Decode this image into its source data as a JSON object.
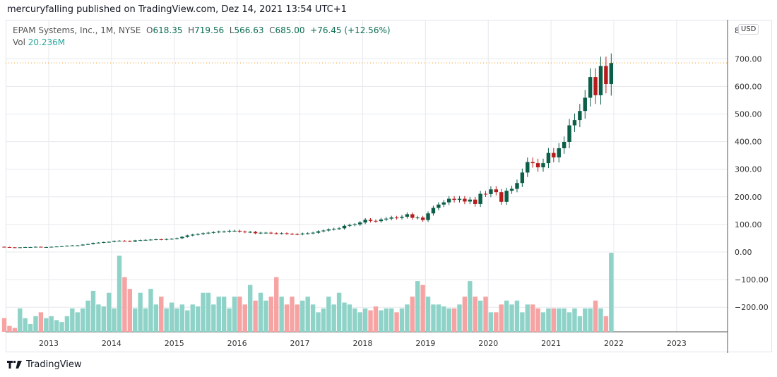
{
  "header": {
    "published": "mercuryfalling published on TradingView.com, Dez 14, 2021 13:54 UTC+1"
  },
  "legend": {
    "symbol": "EPAM Systems, Inc., 1M, NYSE",
    "open_label": "O",
    "open": "618.35",
    "high_label": "H",
    "high": "719.56",
    "low_label": "L",
    "low": "566.63",
    "close_label": "C",
    "close": "685.00",
    "change": "+76.45 (+12.56%)",
    "vol_label": "Vol",
    "vol": "20.236M"
  },
  "currency": "USD",
  "axis_top_partial": "8",
  "footer": {
    "brand": "TradingView"
  },
  "colors": {
    "up": "#0b5e47",
    "down": "#b71c1c",
    "vol_up": "#8fd3c8",
    "vol_down": "#f6a3a3",
    "last_price_line": "#f7931a",
    "grid": "#e6e8ee"
  },
  "chart_data": {
    "type": "candlestick",
    "interval": "1M",
    "start_month": "2012-04",
    "ylim": [
      -300,
      800
    ],
    "yticks": [
      "700.00",
      "600.00",
      "500.00",
      "400.00",
      "300.00",
      "200.00",
      "100.00",
      "0.00",
      "−100.00",
      "−200.00"
    ],
    "ytick_values": [
      700,
      600,
      500,
      400,
      300,
      200,
      100,
      0,
      -100,
      -200
    ],
    "xticks": [
      "2013",
      "2014",
      "2015",
      "2016",
      "2017",
      "2018",
      "2019",
      "2020",
      "2021",
      "2022",
      "2023"
    ],
    "last_price": 685.0,
    "close": [
      18,
      17,
      16,
      17,
      18,
      18,
      19,
      18,
      18,
      19,
      20,
      21,
      23,
      24,
      24,
      27,
      29,
      33,
      34,
      36,
      37,
      40,
      41,
      40,
      38,
      42,
      43,
      44,
      45,
      46,
      45,
      47,
      48,
      50,
      55,
      60,
      63,
      65,
      68,
      70,
      72,
      74,
      74,
      77,
      77,
      74,
      72,
      73,
      68,
      70,
      70,
      68,
      67,
      68,
      66,
      65,
      64,
      67,
      68,
      70,
      75,
      78,
      82,
      84,
      86,
      95,
      98,
      100,
      107,
      117,
      113,
      112,
      118,
      121,
      125,
      124,
      128,
      137,
      124,
      125,
      116,
      140,
      160,
      172,
      180,
      193,
      189,
      193,
      183,
      190,
      174,
      211,
      210,
      227,
      217,
      182,
      222,
      229,
      250,
      288,
      326,
      322,
      307,
      322,
      359,
      343,
      376,
      399,
      459,
      478,
      511,
      559,
      634,
      568,
      674,
      608.55,
      685
    ],
    "first_open": 19,
    "volume_millions": [
      3.5,
      1.5,
      1,
      6,
      3.5,
      2,
      4,
      5,
      3.5,
      4,
      3,
      2.5,
      4,
      6,
      5,
      6,
      8,
      10.5,
      7,
      6.5,
      10,
      6,
      19.5,
      14,
      11,
      6,
      10,
      6,
      11,
      7,
      9,
      6,
      7.5,
      6,
      7,
      5.5,
      7,
      6.5,
      10,
      10,
      7,
      9,
      9,
      6,
      9,
      9,
      7,
      12,
      8,
      10,
      8,
      9,
      14,
      9,
      7,
      9,
      7,
      8,
      9,
      7,
      5,
      6,
      9,
      7,
      10,
      7.5,
      7,
      6,
      5,
      6,
      5.5,
      6.5,
      5.5,
      6,
      6,
      5,
      6,
      7,
      9,
      13,
      12,
      9,
      7,
      7,
      6.5,
      6,
      6,
      7,
      9,
      13,
      9,
      8,
      9,
      5,
      5,
      7,
      8,
      7,
      8,
      5,
      7,
      7,
      6,
      5,
      6,
      6,
      6,
      6,
      5,
      6,
      4,
      6,
      6,
      8,
      6,
      4,
      20.236
    ]
  }
}
